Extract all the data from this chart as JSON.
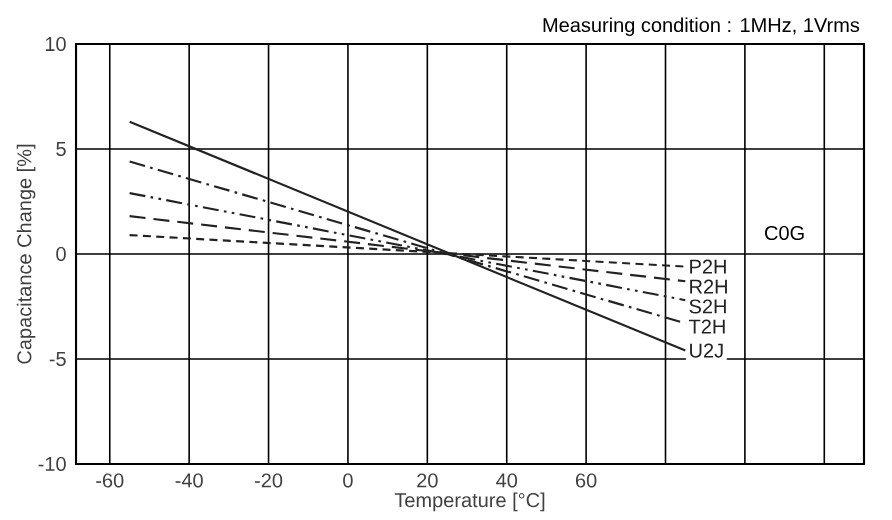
{
  "chart_data": {
    "type": "line",
    "title": "Measuring condition : 1MHz, 1Vrms",
    "xlabel": "Temperature [°C]",
    "ylabel": "Capacitance Change [%]",
    "x": [
      -55,
      85
    ],
    "series": [
      {
        "name": "P2H",
        "color": "#222222",
        "values": [
          0.9,
          -0.6
        ],
        "line_style": "dashed"
      },
      {
        "name": "R2H",
        "color": "#222222",
        "values": [
          1.8,
          -1.3
        ],
        "line_style": "longdashed"
      },
      {
        "name": "S2H",
        "color": "#222222",
        "values": [
          2.9,
          -2.2
        ],
        "line_style": "dashdotdot"
      },
      {
        "name": "T2H",
        "color": "#222222",
        "values": [
          4.4,
          -3.3
        ],
        "line_style": "dashdot"
      },
      {
        "name": "U2J",
        "color": "#222222",
        "values": [
          6.3,
          -4.6
        ],
        "line_style": "solid"
      }
    ],
    "annotations": [
      {
        "text": "C0G",
        "x": 110,
        "y": 1
      }
    ],
    "xlim": [
      -68.5,
      130
    ],
    "ylim": [
      -10,
      10
    ],
    "xticks": [
      -60,
      -40,
      -20,
      0,
      20,
      40,
      60,
      {
        "value": 80,
        "label": null
      },
      {
        "value": 100,
        "label": null
      },
      {
        "value": 120,
        "label": null
      }
    ],
    "yticks": [
      -10,
      -5,
      0,
      5,
      10
    ],
    "grid": true,
    "marker": "none"
  }
}
